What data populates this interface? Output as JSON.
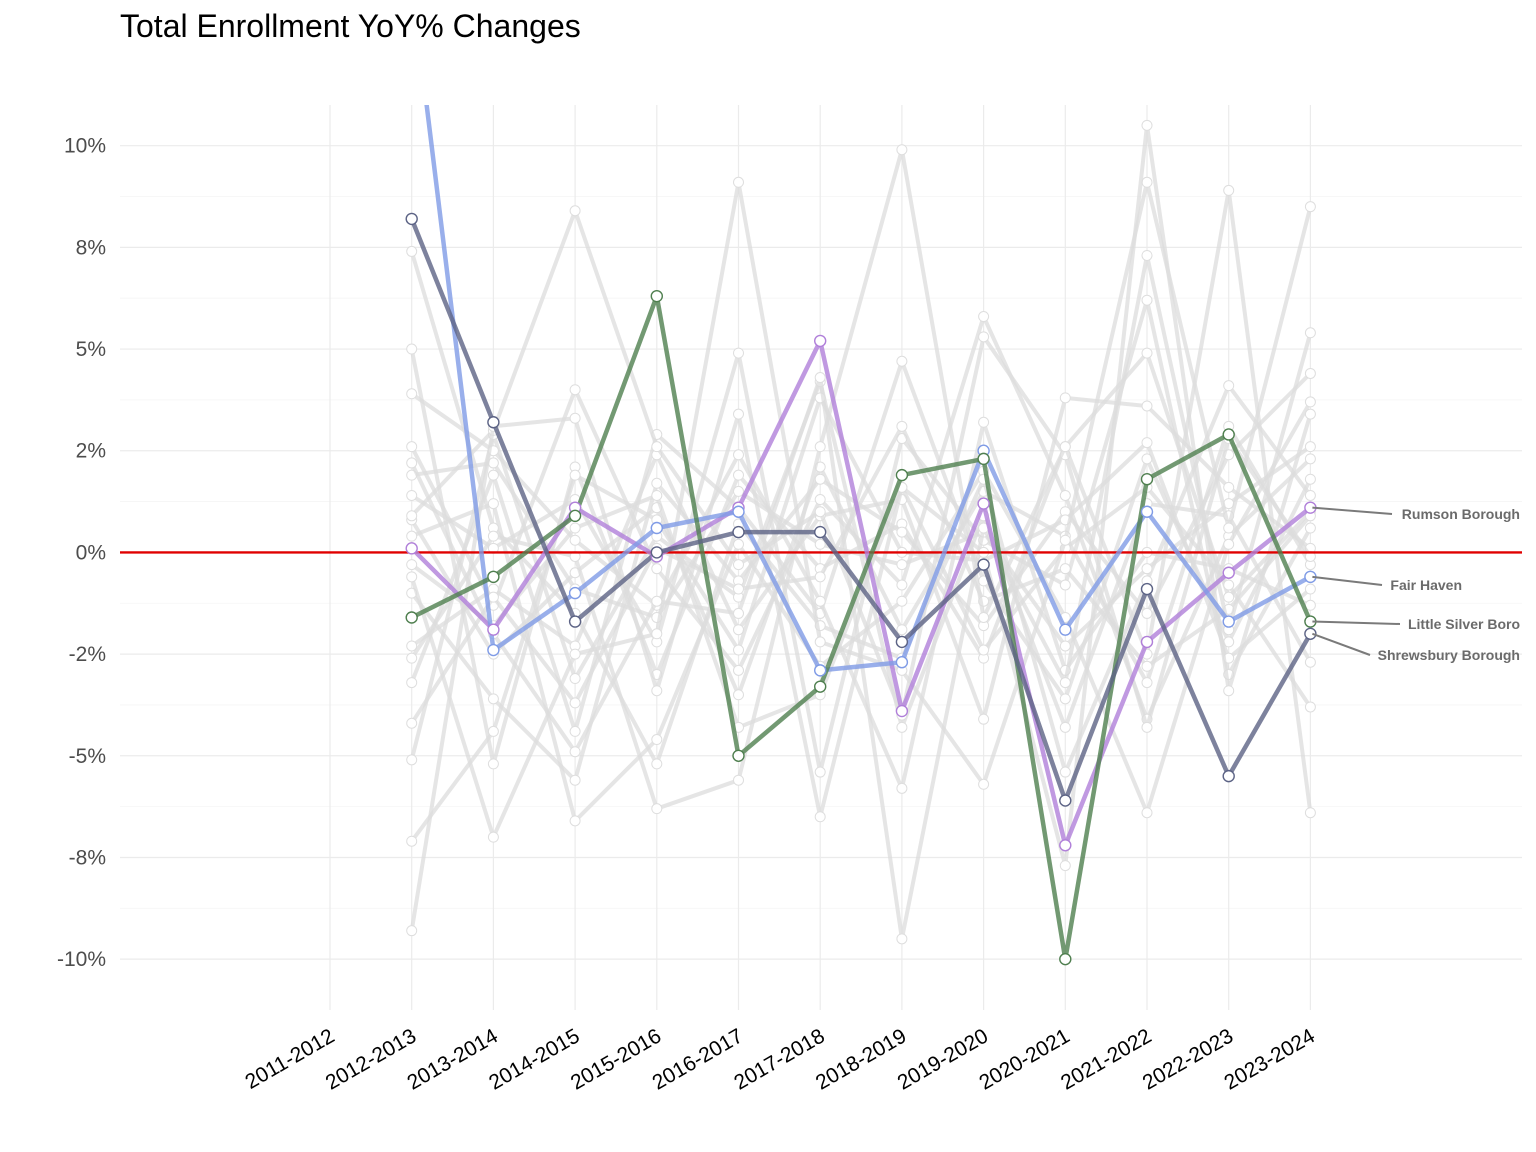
{
  "chart_data": {
    "type": "line",
    "title": "Total Enrollment YoY% Changes",
    "xlabel": "",
    "ylabel": "",
    "x": [
      "2011-2012",
      "2012-2013",
      "2013-2014",
      "2014-2015",
      "2015-2016",
      "2016-2017",
      "2017-2018",
      "2018-2019",
      "2019-2020",
      "2020-2021",
      "2021-2022",
      "2022-2023",
      "2023-2024"
    ],
    "ylim": [
      -11.25,
      11.0
    ],
    "y_ticks": [
      -10,
      -7.5,
      -5,
      -2.5,
      0,
      2.5,
      5,
      7.5,
      10
    ],
    "y_tick_labels": [
      "-10%",
      "-8%",
      "-5%",
      "-2%",
      "0%",
      "2%",
      "5%",
      "8%",
      "10%"
    ],
    "grid": true,
    "reference_line": {
      "y": 0,
      "color": "#e00000"
    },
    "highlight_series": [
      {
        "name": "Rumson Borough",
        "color": "#b07fd9",
        "values": [
          null,
          0.1,
          -1.9,
          1.1,
          -0.1,
          1.1,
          5.2,
          -3.9,
          1.2,
          -7.2,
          -2.2,
          -0.5,
          1.1
        ]
      },
      {
        "name": "Fair Haven",
        "color": "#7f9be6",
        "values": [
          null,
          14.0,
          -2.4,
          -1.0,
          0.6,
          1.0,
          -2.9,
          -2.7,
          2.5,
          -1.9,
          1.0,
          -1.7,
          -0.6
        ]
      },
      {
        "name": "Little Silver Boro",
        "color": "#4f7f4f",
        "values": [
          null,
          -1.6,
          -0.6,
          0.9,
          6.3,
          -5.0,
          -3.3,
          1.9,
          2.3,
          -10.0,
          1.8,
          2.9,
          -1.7
        ]
      },
      {
        "name": "Shrewsbury Borough",
        "color": "#5c6385",
        "values": [
          null,
          8.2,
          3.2,
          -1.7,
          0.0,
          0.5,
          0.5,
          -2.2,
          -0.3,
          -6.1,
          -0.9,
          -5.5,
          -2.0
        ]
      }
    ],
    "background_series": [
      [
        null,
        2.6,
        -1.3,
        4.0,
        -0.4,
        -2.9,
        1.3,
        -0.8,
        5.8,
        1.4,
        -4.1,
        0.4,
        2.3
      ],
      [
        null,
        -3.2,
        1.9,
        -4.4,
        2.9,
        1.1,
        -1.5,
        4.7,
        -0.7,
        -3.6,
        2.3,
        -2.2,
        1.8
      ],
      [
        null,
        0.8,
        -2.5,
        -0.5,
        1.1,
        -3.5,
        2.1,
        -1.9,
        1.5,
        0.4,
        -3.2,
        3.1,
        -0.3
      ],
      [
        null,
        5.0,
        -5.2,
        2.1,
        -3.0,
        1.9,
        -0.4,
        0.7,
        -2.6,
        2.6,
        4.9,
        -1.1,
        1.0
      ],
      [
        null,
        -5.1,
        2.9,
        -3.1,
        0.4,
        -1.1,
        4.2,
        -4.3,
        0.9,
        -4.3,
        1.2,
        0.9,
        -2.7
      ],
      [
        null,
        1.4,
        0.1,
        1.3,
        -2.2,
        4.9,
        -5.4,
        2.8,
        0.3,
        -0.8,
        6.2,
        -3.0,
        0.6
      ],
      [
        null,
        -1.0,
        -3.6,
        -5.6,
        1.7,
        -0.7,
        1.8,
        0.5,
        -1.8,
        1.0,
        -1.5,
        2.4,
        4.4
      ],
      [
        null,
        3.9,
        2.5,
        0.3,
        -1.3,
        2.4,
        -1.2,
        -5.8,
        3.2,
        -2.9,
        0.0,
        -0.4,
        -1.3
      ],
      [
        null,
        -2.3,
        -0.9,
        -2.3,
        2.4,
        -1.9,
        0.9,
        1.3,
        -4.1,
        3.8,
        3.6,
        1.6,
        0.1
      ],
      [
        null,
        0.4,
        1.2,
        -6.6,
        -4.6,
        0.2,
        -2.8,
        -1.2,
        2.0,
        -1.6,
        -6.4,
        0.2,
        3.7
      ],
      [
        null,
        -7.1,
        -4.4,
        1.9,
        0.8,
        -2.4,
        3.8,
        0.0,
        -0.2,
        0.8,
        2.7,
        -2.6,
        -0.9
      ],
      [
        null,
        7.4,
        0.6,
        -1.5,
        -5.2,
        0.7,
        -1.8,
        -2.6,
        1.8,
        -5.4,
        -0.7,
        4.1,
        1.4
      ],
      [
        null,
        -0.3,
        -1.8,
        0.6,
        1.4,
        -4.3,
        -3.5,
        1.6,
        -2.4,
        0.1,
        1.6,
        -0.8,
        -3.8
      ],
      [
        null,
        1.9,
        2.2,
        -0.9,
        -1.6,
        1.5,
        0.2,
        -0.3,
        0.5,
        -2.3,
        -0.4,
        1.2,
        2.6
      ],
      [
        null,
        -4.2,
        -1.1,
        -3.7,
        0.1,
        -0.9,
        -0.6,
        3.1,
        -1.2,
        -0.4,
        -2.8,
        -1.4,
        0.9
      ],
      [
        null,
        0.9,
        3.0,
        8.4,
        2.6,
        -0.3,
        1.0,
        -4.0,
        5.3,
        2.4,
        -4.3,
        2.8,
        -0.1
      ],
      [
        null,
        -0.6,
        -7.0,
        -2.5,
        -2.0,
        9.1,
        -2.2,
        -2.9,
        -5.7,
        0.3,
        9.1,
        0.6,
        8.5
      ],
      [
        null,
        2.2,
        -2.0,
        -4.9,
        -1.2,
        -1.5,
        4.3,
        -9.5,
        0.6,
        -3.2,
        7.3,
        -1.9,
        5.4
      ],
      [
        null,
        -2.6,
        0.4,
        -0.1,
        -6.3,
        -5.6,
        2.6,
        9.9,
        -1.6,
        2.6,
        -2.5,
        8.9,
        -6.4
      ],
      [
        null,
        -9.3,
        3.1,
        3.3,
        -3.4,
        3.4,
        -6.5,
        1.6,
        0.0,
        -7.7,
        10.5,
        -3.4,
        3.4
      ]
    ],
    "annotations": [
      {
        "text": "Rumson Borough",
        "value": 1.1
      },
      {
        "text": "Fair Haven",
        "value": -0.6
      },
      {
        "text": "Little Silver Boro",
        "value": -1.7
      },
      {
        "text": "Shrewsbury Borough",
        "value": -2.0
      }
    ]
  }
}
